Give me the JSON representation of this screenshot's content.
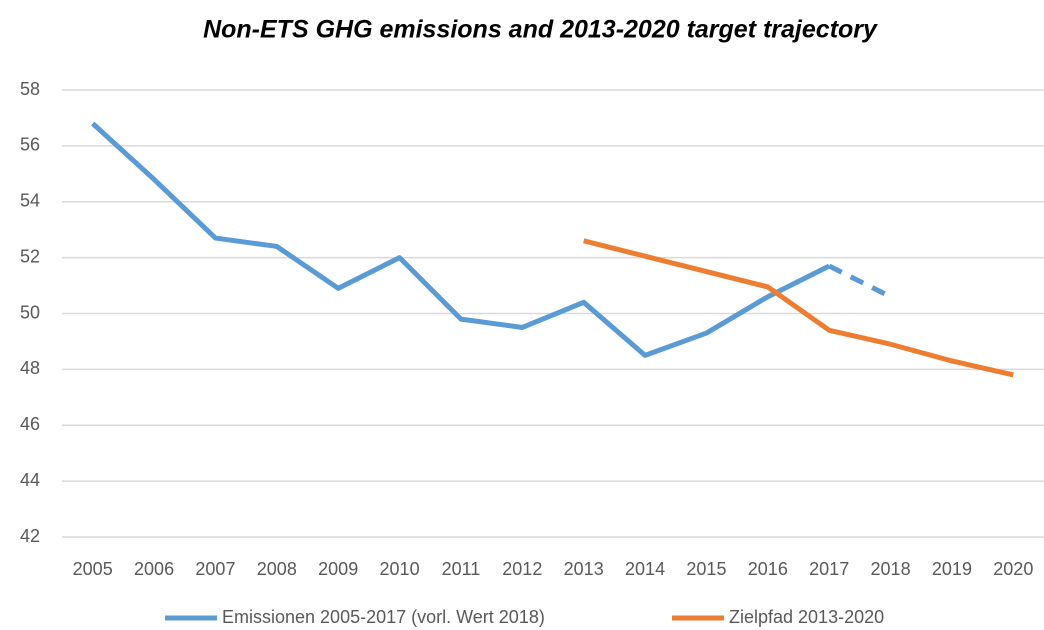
{
  "chart_data": {
    "type": "line",
    "title": "Non-ETS GHG emissions and 2013-2020 target trajectory",
    "categories": [
      "2005",
      "2006",
      "2007",
      "2008",
      "2009",
      "2010",
      "2011",
      "2012",
      "2013",
      "2014",
      "2015",
      "2016",
      "2017",
      "2018",
      "2019",
      "2020"
    ],
    "series": [
      {
        "name": "Emissionen 2005-2017 (vorl. Wert 2018)",
        "color": "#5b9bd5",
        "last_segment_dashed": true,
        "values": [
          56.8,
          54.8,
          52.7,
          52.4,
          50.9,
          52.0,
          49.8,
          49.5,
          50.4,
          48.5,
          49.3,
          50.6,
          51.7,
          50.6,
          null,
          null
        ]
      },
      {
        "name": "Zielpfad 2013-2020",
        "color": "#ed7d31",
        "values": [
          null,
          null,
          null,
          null,
          null,
          null,
          null,
          null,
          52.6,
          52.05,
          51.5,
          50.95,
          49.4,
          48.9,
          48.3,
          47.8
        ]
      }
    ],
    "ylim": [
      42,
      58
    ],
    "yticks": [
      42,
      44,
      46,
      48,
      50,
      52,
      54,
      56,
      58
    ],
    "grid": true,
    "legend": "bottom"
  }
}
